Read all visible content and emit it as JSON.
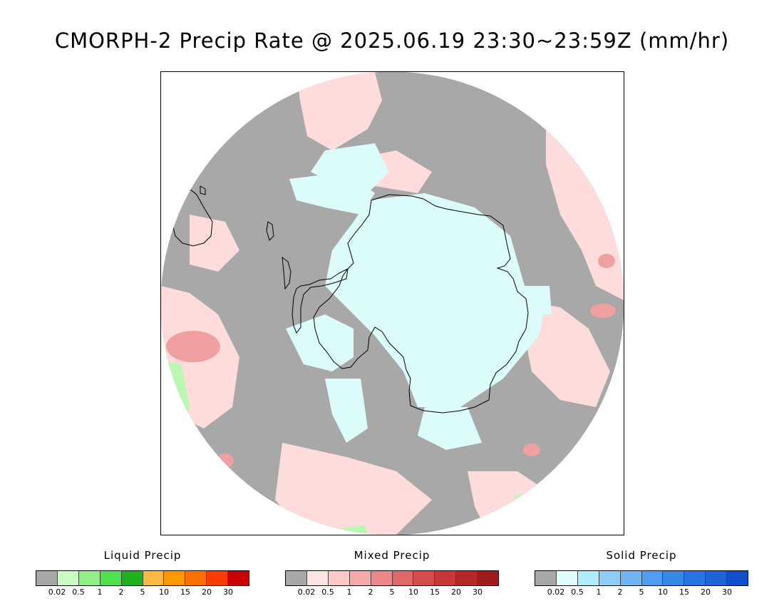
{
  "title": "CMORPH-2 Precip Rate @ 2025.06.19 23:30~23:59Z (mm/hr)",
  "map": {
    "projection": "south-polar-stereographic",
    "colors": {
      "ocean_no_precip": "#a8a8a8",
      "mixed_light": "#ffdcdc",
      "mixed_moderate": "#f0a0a0",
      "solid_light": "#dcfcfc",
      "liquid_light": "#b8f8b0",
      "coastline": "#000000"
    }
  },
  "legends": [
    {
      "title": "Liquid Precip",
      "colors": [
        "#a8a8a8",
        "#c8fcc0",
        "#90f088",
        "#50e050",
        "#20b020",
        "#fcb840",
        "#fc9800",
        "#fc7000",
        "#f83c00",
        "#c80000"
      ],
      "ticks": [
        "0.02",
        "0.5",
        "1",
        "2",
        "5",
        "10",
        "15",
        "20",
        "30"
      ]
    },
    {
      "title": "Mixed Precip",
      "colors": [
        "#a8a8a8",
        "#fce4e4",
        "#fcc8c8",
        "#f4a8a8",
        "#ec8888",
        "#e06868",
        "#d44c4c",
        "#c83838",
        "#b42828",
        "#a01c1c"
      ],
      "ticks": [
        "0.02",
        "0.5",
        "1",
        "2",
        "5",
        "10",
        "15",
        "20",
        "30"
      ]
    },
    {
      "title": "Solid Precip",
      "colors": [
        "#a8a8a8",
        "#e0fcfc",
        "#b0ecfc",
        "#90ccf8",
        "#70b4f4",
        "#509cf0",
        "#3888e8",
        "#2874e0",
        "#1c64d8",
        "#1050cc"
      ],
      "ticks": [
        "0.02",
        "0.5",
        "1",
        "2",
        "5",
        "10",
        "15",
        "20",
        "30"
      ]
    }
  ]
}
